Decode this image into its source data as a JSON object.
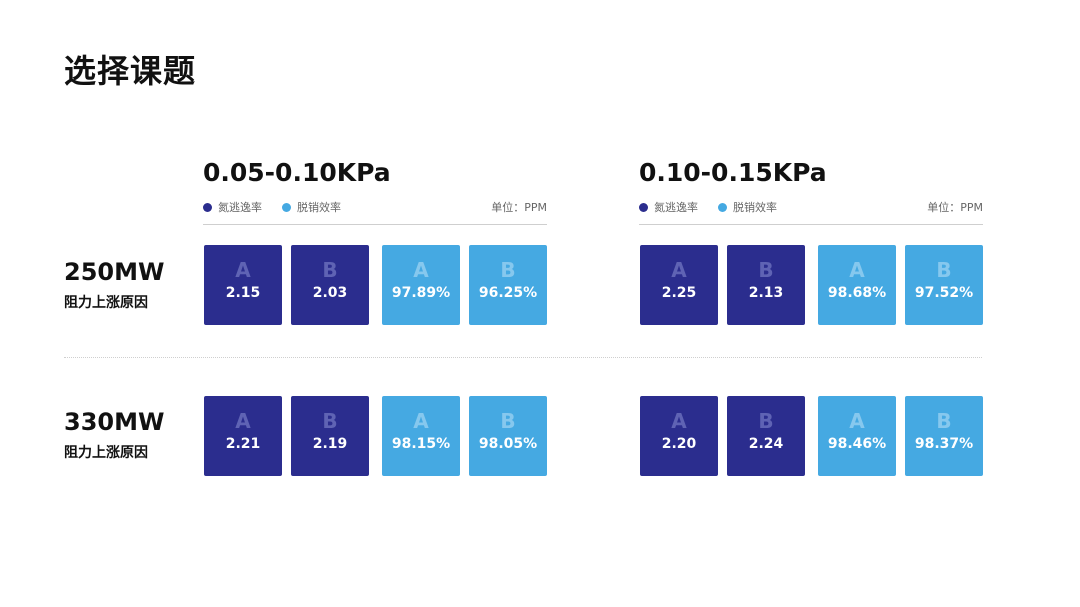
{
  "title": "选择课题",
  "colors": {
    "dark": "#2b2d8e",
    "light": "#45a9e2"
  },
  "legend": {
    "dark_label": "氮逃逸率",
    "light_label": "脱销效率",
    "unit": "单位：PPM"
  },
  "groups": [
    {
      "range": "0.05-0.10KPa"
    },
    {
      "range": "0.10-0.15KPa"
    }
  ],
  "rows": [
    {
      "mw": "250MW",
      "cause": "阻力上涨原因",
      "groups": [
        {
          "tiles": [
            {
              "letter": "A",
              "value": "2.15",
              "type": "dark"
            },
            {
              "letter": "B",
              "value": "2.03",
              "type": "dark"
            },
            {
              "letter": "A",
              "value": "97.89%",
              "type": "light"
            },
            {
              "letter": "B",
              "value": "96.25%",
              "type": "light"
            }
          ]
        },
        {
          "tiles": [
            {
              "letter": "A",
              "value": "2.25",
              "type": "dark"
            },
            {
              "letter": "B",
              "value": "2.13",
              "type": "dark"
            },
            {
              "letter": "A",
              "value": "98.68%",
              "type": "light"
            },
            {
              "letter": "B",
              "value": "97.52%",
              "type": "light"
            }
          ]
        }
      ]
    },
    {
      "mw": "330MW",
      "cause": "阻力上涨原因",
      "groups": [
        {
          "tiles": [
            {
              "letter": "A",
              "value": "2.21",
              "type": "dark"
            },
            {
              "letter": "B",
              "value": "2.19",
              "type": "dark"
            },
            {
              "letter": "A",
              "value": "98.15%",
              "type": "light"
            },
            {
              "letter": "B",
              "value": "98.05%",
              "type": "light"
            }
          ]
        },
        {
          "tiles": [
            {
              "letter": "A",
              "value": "2.20",
              "type": "dark"
            },
            {
              "letter": "B",
              "value": "2.24",
              "type": "dark"
            },
            {
              "letter": "A",
              "value": "98.46%",
              "type": "light"
            },
            {
              "letter": "B",
              "value": "98.37%",
              "type": "light"
            }
          ]
        }
      ]
    }
  ]
}
